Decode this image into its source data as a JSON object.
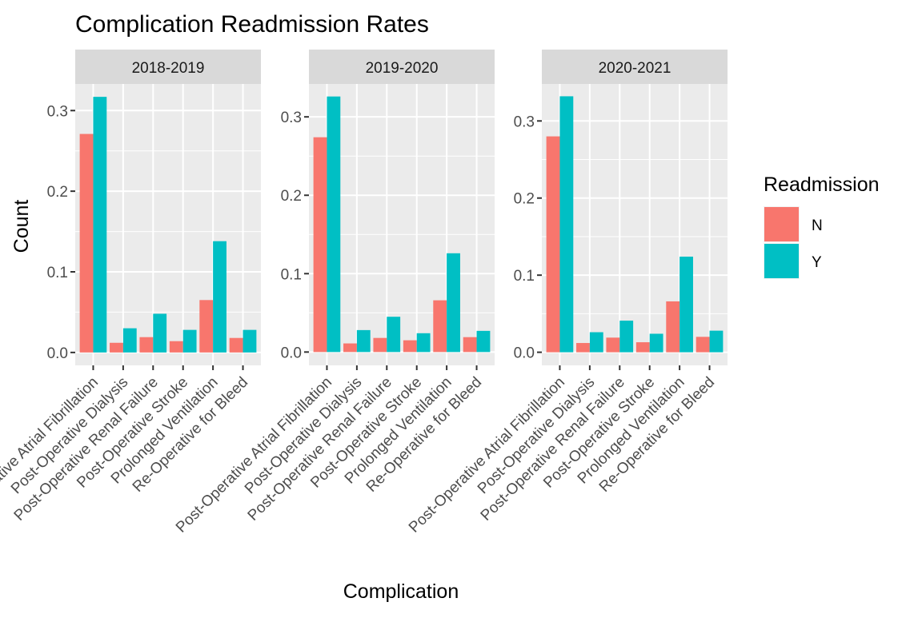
{
  "chart_data": {
    "type": "bar",
    "title": "Complication Readmission Rates",
    "xlabel": "Complication",
    "ylabel": "Count",
    "categories": [
      "Post-Operative Atrial Fibrillation",
      "Post-Operative Dialysis",
      "Post-Operative Renal Failure",
      "Post-Operative Stroke",
      "Prolonged Ventilation",
      "Re-Operative for Bleed"
    ],
    "legend": {
      "title": "Readmission",
      "position": "right",
      "entries": [
        {
          "label": "N",
          "color": "#F8766D"
        },
        {
          "label": "Y",
          "color": "#00BFC4"
        }
      ]
    },
    "grid": true,
    "panels": [
      {
        "label": "2018-2019",
        "ylim": [
          -0.016,
          0.333
        ],
        "yticks": [
          0.0,
          0.1,
          0.2,
          0.3
        ],
        "ytick_labels": [
          "0.0",
          "0.1",
          "0.2",
          "0.3"
        ],
        "series": [
          {
            "name": "N",
            "values": [
              0.271,
              0.012,
              0.019,
              0.014,
              0.065,
              0.018
            ]
          },
          {
            "name": "Y",
            "values": [
              0.317,
              0.03,
              0.048,
              0.028,
              0.138,
              0.028
            ]
          }
        ]
      },
      {
        "label": "2019-2020",
        "ylim": [
          -0.017,
          0.342
        ],
        "yticks": [
          0.0,
          0.1,
          0.2,
          0.3
        ],
        "ytick_labels": [
          "0.0",
          "0.1",
          "0.2",
          "0.3"
        ],
        "series": [
          {
            "name": "N",
            "values": [
              0.274,
              0.011,
              0.018,
              0.015,
              0.066,
              0.019
            ]
          },
          {
            "name": "Y",
            "values": [
              0.326,
              0.028,
              0.045,
              0.024,
              0.126,
              0.027
            ]
          }
        ]
      },
      {
        "label": "2020-2021",
        "ylim": [
          -0.017,
          0.348
        ],
        "yticks": [
          0.0,
          0.1,
          0.2,
          0.3
        ],
        "ytick_labels": [
          "0.0",
          "0.1",
          "0.2",
          "0.3"
        ],
        "series": [
          {
            "name": "N",
            "values": [
              0.28,
              0.012,
              0.019,
              0.013,
              0.066,
              0.02
            ]
          },
          {
            "name": "Y",
            "values": [
              0.332,
              0.026,
              0.041,
              0.024,
              0.124,
              0.028
            ]
          }
        ]
      }
    ]
  }
}
